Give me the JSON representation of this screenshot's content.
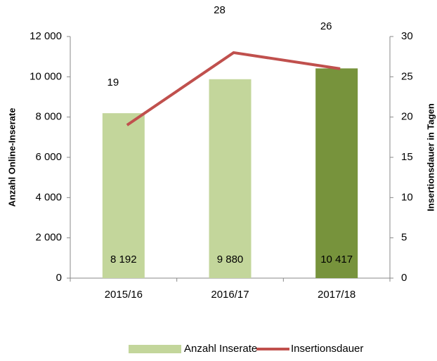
{
  "chart_data": {
    "type": "bar",
    "categories": [
      "2015/16",
      "2016/17",
      "2017/18"
    ],
    "series": [
      {
        "name": "Anzahl Inserate",
        "type": "bar",
        "color": "#c3d69b",
        "colors": [
          "#c3d69b",
          "#c3d69b",
          "#77933c"
        ],
        "values": [
          8192,
          9880,
          10417
        ],
        "value_labels": [
          "8 192",
          "9 880",
          "10 417"
        ]
      },
      {
        "name": "Insertionsdauer",
        "type": "line",
        "axis": "y2",
        "color": "#c0504d",
        "values": [
          19,
          28,
          26
        ]
      }
    ],
    "ylabel": "Anzahl Online-Inserate",
    "y2label": "Insertionsdauer in Tagen",
    "ylim": [
      0,
      12000
    ],
    "yticks": [
      0,
      {
        "value": 2000,
        "label": "2 000"
      },
      {
        "value": 4000,
        "label": "4 000"
      },
      {
        "value": 6000,
        "label": "6 000"
      },
      {
        "value": 8000,
        "label": "8 000"
      },
      {
        "value": 10000,
        "label": "10 000"
      },
      {
        "value": 12000,
        "label": "12 000"
      }
    ],
    "y2lim": [
      0,
      30
    ],
    "y2ticks": [
      0,
      5,
      10,
      15,
      20,
      25,
      30
    ],
    "legend": "bottom"
  }
}
